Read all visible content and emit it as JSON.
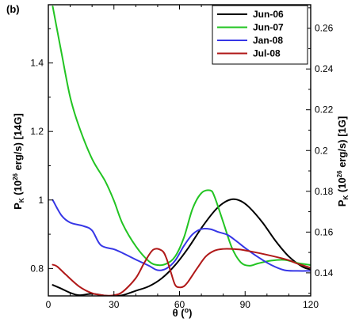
{
  "chart_data": {
    "type": "line",
    "panel_label": "(b)",
    "xlabel": "θ (°)",
    "ylabel_left": "P_K (10^26 erg/s) [14G]",
    "ylabel_right": "P_K (10^26 erg/s) [1G]",
    "xlim": [
      0,
      120
    ],
    "ylim_left": [
      0.72,
      1.57
    ],
    "ylim_right": [
      0.1287,
      0.2715
    ],
    "xticks": [
      0,
      30,
      60,
      90,
      120
    ],
    "yticks_left": [
      0.8,
      1.0,
      1.2,
      1.4
    ],
    "yticks_right": [
      0.14,
      0.16,
      0.18,
      0.2,
      0.22,
      0.24,
      0.26
    ],
    "legend_position": "top-right",
    "grid": false,
    "series": [
      {
        "name": "Jun-06",
        "color": "#000000",
        "axis": "left",
        "x": [
          2,
          6,
          10,
          14,
          20,
          26,
          30,
          34,
          40,
          46,
          52,
          58,
          64,
          70,
          76,
          80,
          84,
          88,
          92,
          98,
          104,
          110,
          116,
          120
        ],
        "y": [
          0.752,
          0.741,
          0.729,
          0.722,
          0.726,
          0.721,
          0.72,
          0.722,
          0.735,
          0.748,
          0.772,
          0.81,
          0.86,
          0.918,
          0.968,
          0.991,
          1.002,
          0.997,
          0.978,
          0.934,
          0.88,
          0.835,
          0.806,
          0.797
        ]
      },
      {
        "name": "Jun-07",
        "color": "#22c422",
        "axis": "left",
        "x": [
          2,
          6,
          10,
          14,
          20,
          26,
          30,
          34,
          40,
          46,
          50,
          54,
          58,
          62,
          66,
          70,
          74,
          76,
          80,
          84,
          88,
          92,
          96,
          102,
          108,
          114,
          120
        ],
        "y": [
          1.565,
          1.43,
          1.3,
          1.215,
          1.12,
          1.055,
          0.998,
          0.93,
          0.865,
          0.821,
          0.81,
          0.814,
          0.835,
          0.89,
          0.975,
          1.02,
          1.028,
          1.01,
          0.935,
          0.86,
          0.818,
          0.808,
          0.815,
          0.823,
          0.825,
          0.816,
          0.81
        ]
      },
      {
        "name": "Jan-08",
        "color": "#3636e6",
        "axis": "left",
        "x": [
          2,
          6,
          10,
          16,
          20,
          24,
          30,
          34,
          40,
          46,
          50,
          54,
          58,
          62,
          66,
          70,
          74,
          78,
          82,
          86,
          90,
          96,
          102,
          108,
          114,
          120
        ],
        "y": [
          1.0,
          0.955,
          0.934,
          0.924,
          0.911,
          0.868,
          0.856,
          0.845,
          0.826,
          0.808,
          0.795,
          0.8,
          0.823,
          0.866,
          0.9,
          0.915,
          0.915,
          0.906,
          0.898,
          0.88,
          0.86,
          0.833,
          0.81,
          0.795,
          0.793,
          0.793
        ]
      },
      {
        "name": "Jul-08",
        "color": "#b01818",
        "axis": "left",
        "x": [
          2,
          4,
          8,
          14,
          20,
          26,
          30,
          34,
          40,
          44,
          48,
          52,
          54,
          56,
          58,
          60,
          62,
          64,
          68,
          72,
          76,
          80,
          84,
          88,
          94,
          100,
          106,
          110,
          114,
          120
        ],
        "y": [
          0.811,
          0.806,
          0.782,
          0.748,
          0.728,
          0.721,
          0.722,
          0.732,
          0.772,
          0.818,
          0.855,
          0.852,
          0.83,
          0.79,
          0.752,
          0.745,
          0.748,
          0.762,
          0.8,
          0.835,
          0.852,
          0.857,
          0.857,
          0.855,
          0.848,
          0.84,
          0.831,
          0.824,
          0.814,
          0.802
        ]
      }
    ]
  }
}
